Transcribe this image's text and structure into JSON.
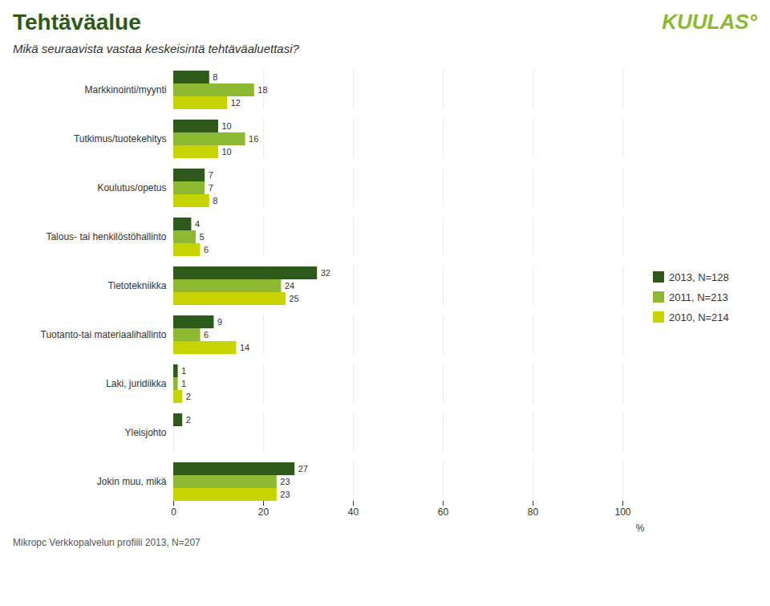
{
  "chart_data": {
    "type": "bar",
    "orientation": "horizontal",
    "title": "Tehtäväalue",
    "subtitle": "Mikä seuraavista vastaa keskeisintä tehtäväaluettasi?",
    "caption": "Mikropc Verkkopalvelun profiili 2013, N=207",
    "annotations": [
      "KUULAS°"
    ],
    "categories": [
      "Markkinointi/myynti",
      "Tutkimus/tuotekehitys",
      "Koulutus/opetus",
      "Talous- tai henkilöstöhallinto",
      "Tietotekniikka",
      "Tuotanto-tai materiaalihallinto",
      "Laki, juridiikka",
      "Yleisjohto",
      "Jokin muu, mikä"
    ],
    "series": [
      {
        "name": "2013, N=128",
        "color": "#2d5a1b",
        "values": [
          8,
          10,
          7,
          4,
          32,
          9,
          1,
          2,
          27
        ]
      },
      {
        "name": "2011, N=213",
        "color": "#8db832",
        "values": [
          18,
          16,
          7,
          5,
          24,
          6,
          1,
          0,
          23
        ]
      },
      {
        "name": "2010, N=214",
        "color": "#c8d400",
        "values": [
          12,
          10,
          8,
          6,
          25,
          14,
          2,
          0,
          23
        ]
      }
    ],
    "xlabel": "%",
    "xlim": [
      0,
      100
    ],
    "xticks": [
      0,
      20,
      40,
      60,
      80,
      100
    ],
    "grid": true,
    "legend": "right",
    "data_labels": true
  }
}
